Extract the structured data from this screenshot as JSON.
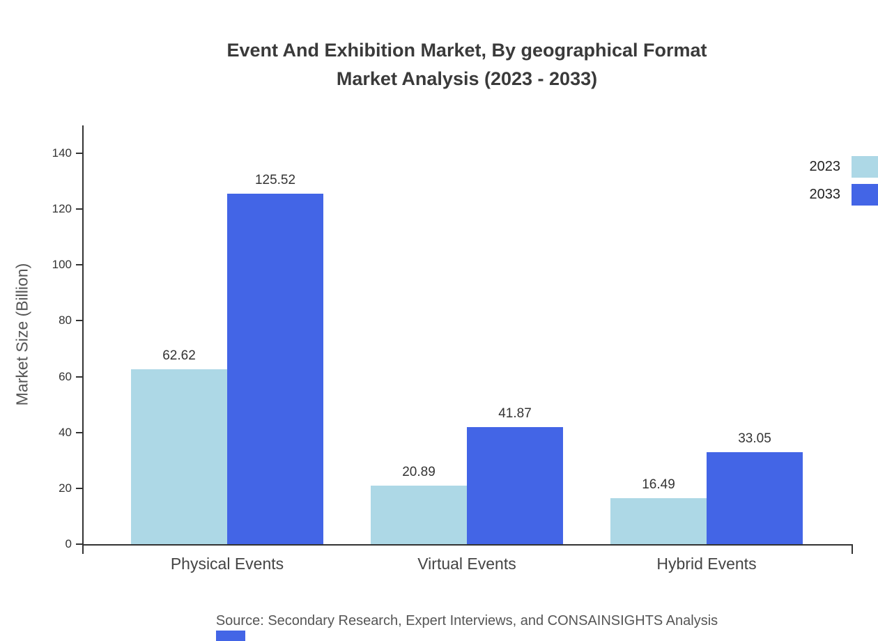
{
  "title": {
    "line1": "Event And Exhibition Market, By geographical Format",
    "line2": "Market Analysis (2023 - 2033)"
  },
  "source": "Source: Secondary Research, Expert Interviews, and CONSAINSIGHTS Analysis",
  "chart_data": {
    "type": "bar",
    "title": "Event And Exhibition Market, By geographical Format Market Analysis (2023 - 2033)",
    "categories": [
      "Physical Events",
      "Virtual Events",
      "Hybrid Events"
    ],
    "series": [
      {
        "name": "2023",
        "color": "#add8e6",
        "values": [
          62.62,
          20.89,
          16.49
        ]
      },
      {
        "name": "2033",
        "color": "#4365e6",
        "values": [
          125.52,
          41.87,
          33.05
        ]
      }
    ],
    "xlabel": "",
    "ylabel": "Market Size (Billion)",
    "ylim": [
      0,
      150
    ],
    "yticks": [
      0,
      20,
      40,
      60,
      80,
      100,
      120,
      140
    ],
    "grid": false,
    "value_labels": true,
    "legend_position": "top-right"
  },
  "colors": {
    "series_2023": "#add8e6",
    "series_2033": "#4365e6",
    "axis": "#333333",
    "title_text": "#3a3a3a",
    "source_text": "#555555"
  }
}
